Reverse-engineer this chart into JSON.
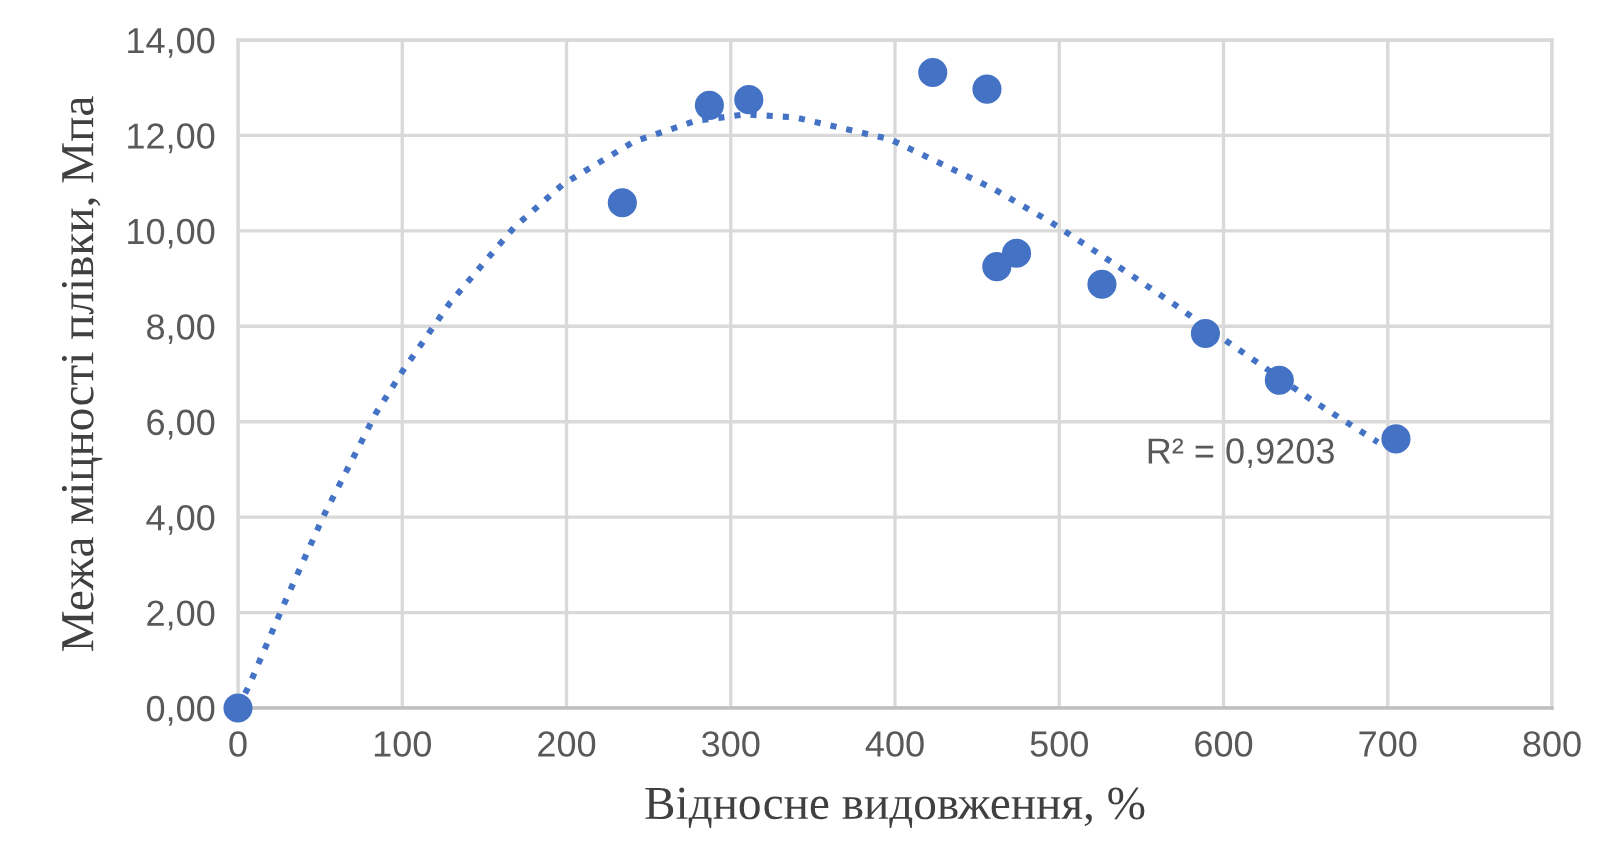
{
  "chart_data": {
    "type": "scatter",
    "xlabel": "Відносне видовження, %",
    "ylabel": "Межа міцності плівки, Мпа",
    "series": [
      {
        "color": "#4472c4",
        "marker": "circle",
        "x": [
          0,
          234,
          287,
          311,
          423,
          456,
          462,
          474,
          526,
          589,
          634,
          705
        ],
        "values": [
          0,
          10.59,
          12.63,
          12.75,
          13.32,
          12.97,
          9.25,
          9.53,
          8.88,
          7.85,
          6.87,
          5.64
        ]
      },
      {
        "type": "line",
        "color": "#4472c4",
        "marker": "none",
        "line_style": "dotted",
        "x": [
          0,
          7,
          27,
          52,
          84,
          100,
          129,
          168,
          198,
          241,
          279,
          309,
          339,
          397,
          460,
          495,
          537,
          570,
          603,
          653,
          694
        ],
        "values": [
          0,
          0.49,
          2.1,
          4.02,
          6.18,
          7.05,
          8.49,
          10.07,
          10.98,
          11.87,
          12.31,
          12.44,
          12.38,
          11.92,
          10.88,
          10.18,
          9.23,
          8.46,
          7.66,
          6.47,
          5.57
        ]
      }
    ],
    "annotations": [
      "R² = 0,9203"
    ],
    "xlim": [
      0,
      800
    ],
    "xticks": [
      0,
      100,
      200,
      300,
      400,
      500,
      600,
      700,
      800
    ],
    "ylim": [
      0,
      14
    ],
    "yticks": [
      {
        "value": 0,
        "label": "0,00"
      },
      {
        "value": 2,
        "label": "2,00"
      },
      {
        "value": 4,
        "label": "4,00"
      },
      {
        "value": 6,
        "label": "6,00"
      },
      {
        "value": 8,
        "label": "8,00"
      },
      {
        "value": 10,
        "label": "10,00"
      },
      {
        "value": 12,
        "label": "12,00"
      },
      {
        "value": 14,
        "label": "14,00"
      }
    ],
    "grid": true
  }
}
